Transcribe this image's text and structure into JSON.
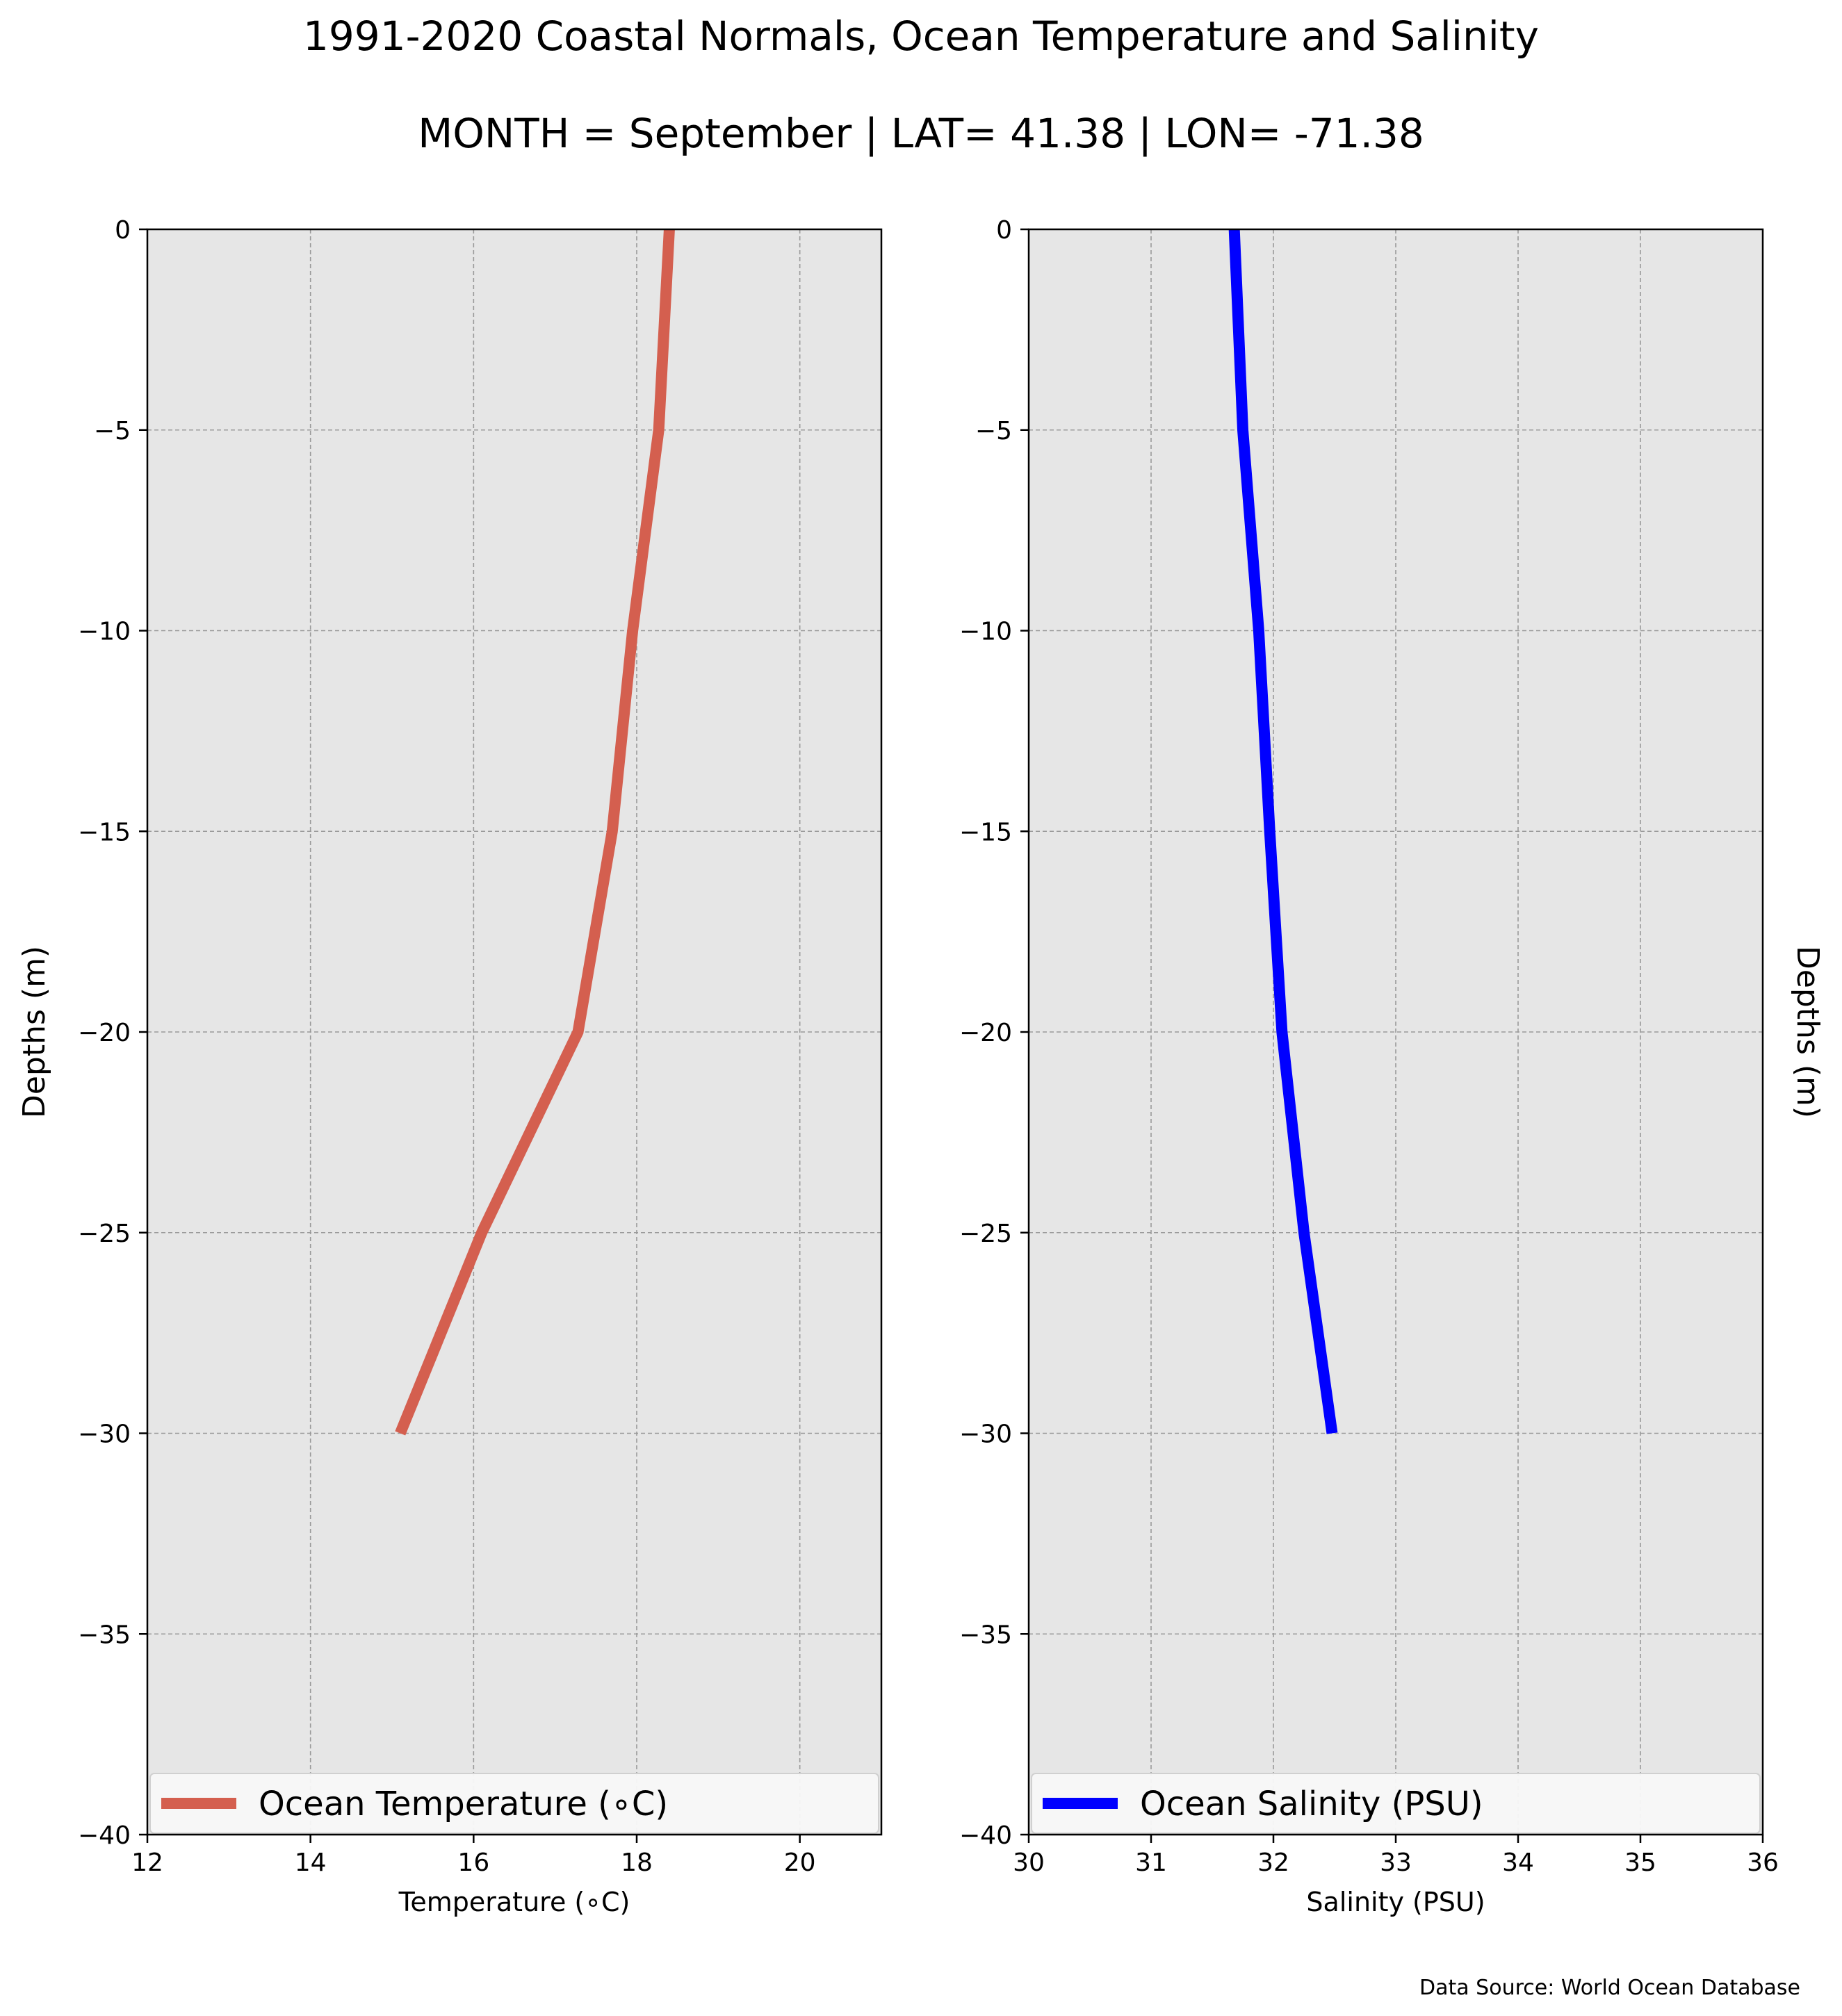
{
  "title": "1991-2020 Coastal Normals, Ocean Temperature and Salinity",
  "subtitle": "MONTH = September | LAT= 41.38 | LON= -71.38",
  "source": "Data Source: World Ocean Database",
  "colors": {
    "panel_background": "#e6e6e6",
    "grid": "#9a9a9a",
    "temperature_line": "#d45f4f",
    "salinity_line": "#0000ff"
  },
  "chart_data": [
    {
      "type": "line",
      "xlabel": "Temperature ($^\\circ$C)",
      "xlabel_display": "Temperature (∘C)",
      "ylabel": "Depths (m)",
      "xlim": [
        12,
        21
      ],
      "ylim": [
        -40,
        0
      ],
      "xticks": [
        12,
        14,
        16,
        18,
        20
      ],
      "xtick_labels": [
        "12",
        "14",
        "16",
        "18",
        "20"
      ],
      "yticks": [
        0,
        -5,
        -10,
        -15,
        -20,
        -25,
        -30,
        -35,
        -40
      ],
      "ytick_labels": [
        "0",
        "−5",
        "−10",
        "−15",
        "−20",
        "−25",
        "−30",
        "−35",
        "−40"
      ],
      "grid": true,
      "legend_position": "lower center",
      "series": [
        {
          "name": "Ocean Temperature (∘C)",
          "color": "#d45f4f",
          "x": [
            18.4,
            18.27,
            17.95,
            17.7,
            17.28,
            16.1,
            15.1
          ],
          "y": [
            0,
            -5,
            -10,
            -15,
            -20,
            -25,
            -30
          ]
        }
      ]
    },
    {
      "type": "line",
      "xlabel": "Salinity (PSU)",
      "ylabel": "Depths (m)",
      "xlim": [
        30,
        36
      ],
      "ylim": [
        -40,
        0
      ],
      "xticks": [
        30,
        31,
        32,
        33,
        34,
        35,
        36
      ],
      "xtick_labels": [
        "30",
        "31",
        "32",
        "33",
        "34",
        "35",
        "36"
      ],
      "yticks": [
        0,
        -5,
        -10,
        -15,
        -20,
        -25,
        -30,
        -35,
        -40
      ],
      "ytick_labels": [
        "0",
        "−5",
        "−10",
        "−15",
        "−20",
        "−25",
        "−30",
        "−35",
        "−40"
      ],
      "grid": true,
      "legend_position": "lower center",
      "series": [
        {
          "name": "Ocean Salinity (PSU)",
          "color": "#0000ff",
          "x": [
            31.68,
            31.75,
            31.88,
            31.97,
            32.07,
            32.25,
            32.48
          ],
          "y": [
            0,
            -5,
            -10,
            -15,
            -20,
            -25,
            -30
          ]
        }
      ]
    }
  ]
}
